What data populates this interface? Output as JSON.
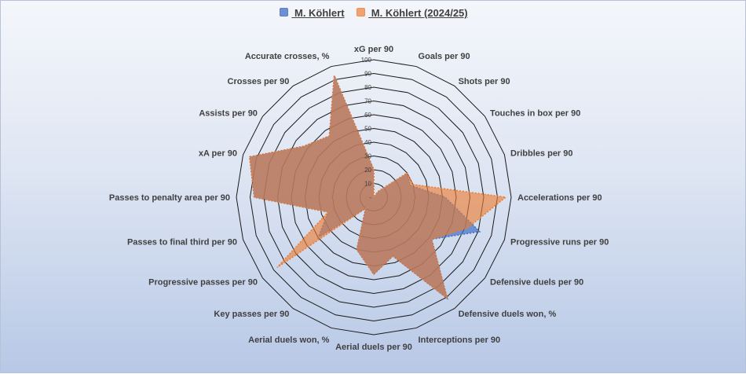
{
  "chart_data": {
    "type": "radar",
    "title": "",
    "categories": [
      "xG per 90",
      "Goals per 90",
      "Shots per 90",
      "Touches in box per 90",
      "Dribbles per 90",
      "Accelerations per 90",
      "Progressive runs per 90",
      "Defensive duels per 90",
      "Defensive duels won, %",
      "Interceptions per 90",
      "Aerial duels per 90",
      "Aerial duels won, %",
      "Key passes per 90",
      "Progressive passes per 90",
      "Passes to final third per 90",
      "Passes to penalty area per 90",
      "xA per 90",
      "Assists per 90",
      "Crosses per 90",
      "Accurate crosses, %"
    ],
    "series": [
      {
        "name": "M. Köhlert",
        "color": "#4472c4",
        "values": [
          20,
          0,
          5,
          30,
          28,
          52,
          81,
          52,
          91,
          45,
          56,
          40,
          10,
          50,
          35,
          87,
          95,
          63,
          55,
          93
        ]
      },
      {
        "name": "M. Köhlert (2024/25)",
        "color": "#ed7d31",
        "values": [
          20,
          0,
          5,
          30,
          30,
          96,
          72,
          52,
          91,
          45,
          56,
          40,
          10,
          87,
          35,
          87,
          95,
          63,
          55,
          93
        ]
      }
    ],
    "rlim": [
      0,
      100
    ],
    "ticks": [
      10,
      20,
      30,
      40,
      50,
      60,
      70,
      80,
      90,
      100
    ],
    "tick_labels": [
      "10",
      "20",
      "30",
      "40",
      "50",
      "60",
      "70",
      "80",
      "90",
      "100"
    ],
    "center_label": "-",
    "grid": true,
    "legend_position": "top"
  }
}
